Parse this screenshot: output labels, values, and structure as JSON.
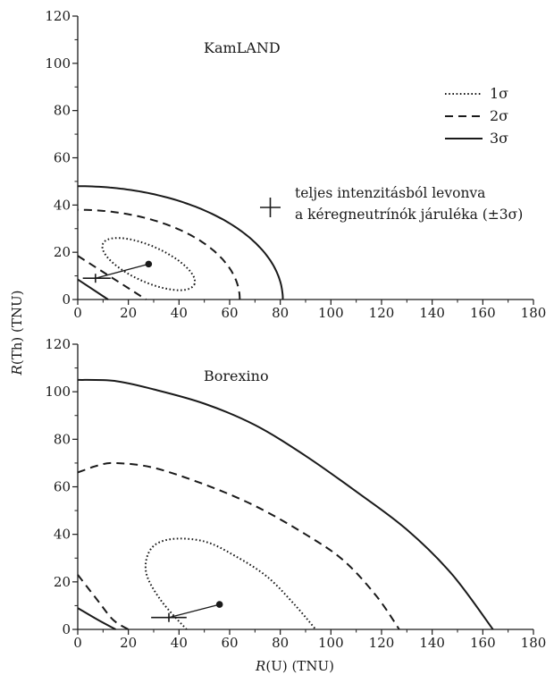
{
  "chart_data": {
    "type": "line",
    "xlabel_prefix": "R",
    "xlabel_suffix": "(U) (TNU)",
    "ylabel_prefix": "R",
    "ylabel_suffix": "(Th) (TNU)",
    "xlim": [
      0,
      180
    ],
    "ylim": [
      0,
      120
    ],
    "xticks": [
      0,
      20,
      40,
      60,
      80,
      100,
      120,
      140,
      160,
      180
    ],
    "yticks": [
      0,
      20,
      40,
      60,
      80,
      100,
      120
    ],
    "legend": [
      {
        "label": "1σ",
        "style": "dotted"
      },
      {
        "label": "2σ",
        "style": "dashed"
      },
      {
        "label": "3σ",
        "style": "solid"
      }
    ],
    "annotation": {
      "line1": "teljes intenzitásból levonva",
      "line2": "a kéregneutrínók járuléka (±3σ)"
    },
    "panels": [
      {
        "title": "KamLAND",
        "best_fit": [
          28,
          15
        ],
        "crust_subtracted": [
          7,
          9
        ],
        "crust_error_bar_x": [
          2,
          13
        ],
        "contours": [
          {
            "level": "1σ",
            "style": "dotted",
            "type": "ellipse",
            "center": [
              28,
              15
            ],
            "semi_major": 20,
            "semi_minor": 7.5,
            "angle_deg": -26
          },
          {
            "level": "2σ",
            "style": "dashed",
            "type": "arc",
            "a": 64,
            "b": 38
          },
          {
            "level": "2σ",
            "style": "dashed",
            "type": "segment",
            "from": [
              0,
              18.5
            ],
            "to": [
              27,
              0
            ]
          },
          {
            "level": "3σ",
            "style": "solid",
            "type": "arc",
            "a": 81,
            "b": 48
          },
          {
            "level": "3σ",
            "style": "solid",
            "type": "segment",
            "from": [
              0,
              8.5
            ],
            "to": [
              12,
              0
            ]
          }
        ]
      },
      {
        "title": "Borexino",
        "best_fit": [
          56,
          10.5
        ],
        "crust_subtracted": [
          36,
          5
        ],
        "crust_error_bar_x": [
          29,
          43
        ],
        "contours": [
          {
            "level": "1σ",
            "style": "dotted",
            "type": "curve",
            "points": [
              [
                43,
                0
              ],
              [
                33,
                12
              ],
              [
                27,
                24
              ],
              [
                29,
                34
              ],
              [
                37,
                38
              ],
              [
                50,
                37
              ],
              [
                62,
                31
              ],
              [
                75,
                22
              ],
              [
                86,
                10
              ],
              [
                94,
                0
              ]
            ]
          },
          {
            "level": "2σ",
            "style": "dashed",
            "type": "curve",
            "points": [
              [
                0,
                66
              ],
              [
                8,
                69
              ],
              [
                15,
                70
              ],
              [
                30,
                68
              ],
              [
                50,
                61
              ],
              [
                70,
                52
              ],
              [
                90,
                40
              ],
              [
                105,
                29
              ],
              [
                118,
                14
              ],
              [
                127,
                0
              ]
            ]
          },
          {
            "level": "2σ",
            "style": "dashed",
            "type": "curve",
            "points": [
              [
                0,
                23
              ],
              [
                8,
                12
              ],
              [
                14,
                4
              ],
              [
                20,
                0
              ]
            ]
          },
          {
            "level": "3σ",
            "style": "solid",
            "type": "curve",
            "points": [
              [
                0,
                105
              ],
              [
                15,
                104.5
              ],
              [
                30,
                101
              ],
              [
                50,
                95
              ],
              [
                70,
                86
              ],
              [
                90,
                73
              ],
              [
                110,
                58
              ],
              [
                130,
                42
              ],
              [
                148,
                23
              ],
              [
                164,
                0
              ]
            ]
          },
          {
            "level": "3σ",
            "style": "solid",
            "type": "curve",
            "points": [
              [
                0,
                9
              ],
              [
                8,
                4
              ],
              [
                15,
                0
              ]
            ]
          }
        ]
      }
    ]
  }
}
